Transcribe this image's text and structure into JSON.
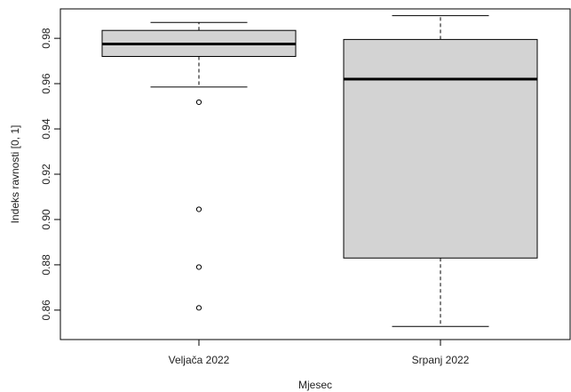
{
  "chart_data": {
    "type": "boxplot",
    "title": "",
    "xlabel": "Mjesec",
    "ylabel": "Indeks ravnosti [0, 1]",
    "ylim": [
      0.847,
      0.993
    ],
    "y_ticks": [
      0.86,
      0.88,
      0.9,
      0.92,
      0.94,
      0.96,
      0.98
    ],
    "y_tick_labels": [
      "0.86",
      "0.88",
      "0.90",
      "0.92",
      "0.94",
      "0.96",
      "0.98"
    ],
    "categories": [
      "Veljača 2022",
      "Srpanj 2022"
    ],
    "boxes": [
      {
        "category": "Veljača 2022",
        "whisker_low": 0.9585,
        "q1": 0.972,
        "median": 0.9775,
        "q3": 0.9835,
        "whisker_high": 0.987,
        "outliers": [
          0.9518,
          0.9045,
          0.879,
          0.861
        ]
      },
      {
        "category": "Srpanj 2022",
        "whisker_low": 0.8528,
        "q1": 0.883,
        "median": 0.962,
        "q3": 0.9795,
        "whisker_high": 0.99,
        "outliers": []
      }
    ],
    "box_fill": "#d3d3d3",
    "grid": false,
    "legend": "none"
  }
}
